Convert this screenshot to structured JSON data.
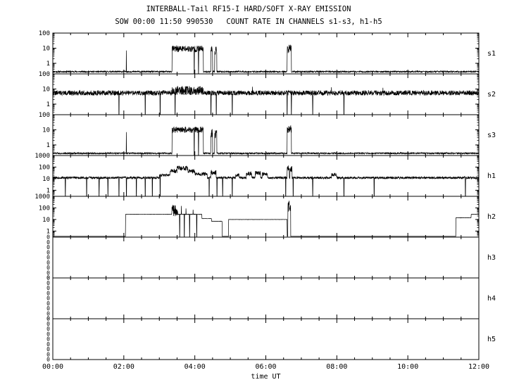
{
  "title": "INTERBALL-Tail RF15-I HARD/SOFT X-RAY EMISSION",
  "subtitle": "SOW 00:00 11:50 990530   COUNT RATE IN CHANNELS s1-s3, h1-h5",
  "chart_data": {
    "type": "line",
    "title": "INTERBALL-Tail RF15-I HARD/SOFT X-RAY EMISSION",
    "subtitle": "SOW 00:00 11:50 990530   COUNT RATE IN CHANNELS s1-s3, h1-h5",
    "xlabel": "time UT",
    "x_range_hours": [
      0,
      12
    ],
    "x_tick_hours": [
      0,
      2,
      4,
      6,
      8,
      10,
      12
    ],
    "x_tick_labels": [
      "00:00",
      "02:00",
      "04:00",
      "06:00",
      "08:00",
      "10:00",
      "12:00"
    ],
    "y_scale": "log",
    "grid": false,
    "legend": "none",
    "panels": [
      {
        "label": "s1",
        "ylim": [
          0.2,
          100
        ],
        "y_ticks": [
          {
            "v": 100,
            "label": "100"
          },
          {
            "v": 10,
            "label": "10"
          },
          {
            "v": 1,
            "label": "1"
          }
        ],
        "seed": 11,
        "baseline": 0.28,
        "noise": 0.05,
        "bursts": [
          {
            "t0": 3.36,
            "t1": 4.24,
            "level": 9,
            "noise": 0.22
          },
          {
            "t0": 4.45,
            "t1": 4.5,
            "level": 8,
            "noise": 0.3
          },
          {
            "t0": 4.56,
            "t1": 4.62,
            "level": 7,
            "noise": 0.3
          },
          {
            "t0": 6.6,
            "t1": 6.72,
            "level": 9,
            "noise": 0.28
          }
        ],
        "spikes": [
          {
            "t": 2.07,
            "level": 7
          }
        ],
        "dropouts": [
          3.98,
          4.1
        ]
      },
      {
        "label": "s2",
        "ylim": [
          0.2,
          100
        ],
        "y_ticks": [
          {
            "v": 100,
            "label": "100"
          },
          {
            "v": 10,
            "label": "10"
          },
          {
            "v": 1,
            "label": "1"
          }
        ],
        "seed": 22,
        "baseline": 5.5,
        "noise": 0.16,
        "bursts": [
          {
            "t0": 3.36,
            "t1": 4.24,
            "level": 8,
            "noise": 0.3
          }
        ],
        "spikes": [
          {
            "t": 5.62,
            "level": 14
          },
          {
            "t": 7.85,
            "level": 13
          },
          {
            "t": 9.3,
            "level": 12
          }
        ],
        "dropouts": [
          1.86,
          2.6,
          3.02,
          3.44,
          4.45,
          4.6,
          5.05,
          6.6,
          6.72,
          7.32,
          8.2
        ]
      },
      {
        "label": "s3",
        "ylim": [
          0.2,
          100
        ],
        "y_ticks": [
          {
            "v": 100,
            "label": "100"
          },
          {
            "v": 10,
            "label": "10"
          },
          {
            "v": 1,
            "label": "1"
          }
        ],
        "seed": 33,
        "baseline": 0.28,
        "noise": 0.05,
        "bursts": [
          {
            "t0": 3.36,
            "t1": 4.24,
            "level": 10,
            "noise": 0.2
          },
          {
            "t0": 4.45,
            "t1": 4.5,
            "level": 6,
            "noise": 0.3
          },
          {
            "t0": 4.56,
            "t1": 4.62,
            "level": 5,
            "noise": 0.3
          },
          {
            "t0": 6.6,
            "t1": 6.72,
            "level": 11,
            "noise": 0.25
          }
        ],
        "spikes": [
          {
            "t": 2.07,
            "level": 7
          }
        ],
        "dropouts": [
          3.98,
          4.1
        ]
      },
      {
        "label": "h1",
        "ylim": [
          0.3,
          1000
        ],
        "y_ticks": [
          {
            "v": 1000,
            "label": "1000"
          },
          {
            "v": 100,
            "label": "100"
          },
          {
            "v": 10,
            "label": "10"
          },
          {
            "v": 1,
            "label": "1"
          }
        ],
        "seed": 44,
        "baseline": 12,
        "noise": 0.1,
        "bursts": [
          {
            "t0": 3.0,
            "t1": 3.3,
            "level": 20,
            "noise": 0.12
          },
          {
            "t0": 3.3,
            "t1": 3.5,
            "level": 45,
            "noise": 0.18
          },
          {
            "t0": 3.5,
            "t1": 3.8,
            "level": 80,
            "noise": 0.2
          },
          {
            "t0": 3.8,
            "t1": 4.0,
            "level": 45,
            "noise": 0.18
          },
          {
            "t0": 4.0,
            "t1": 4.35,
            "level": 25,
            "noise": 0.15
          },
          {
            "t0": 4.45,
            "t1": 4.6,
            "level": 35,
            "noise": 0.2
          },
          {
            "t0": 5.15,
            "t1": 5.25,
            "level": 20,
            "noise": 0.15
          },
          {
            "t0": 5.45,
            "t1": 5.6,
            "level": 28,
            "noise": 0.18
          },
          {
            "t0": 5.7,
            "t1": 5.85,
            "level": 30,
            "noise": 0.18
          },
          {
            "t0": 5.9,
            "t1": 6.05,
            "level": 25,
            "noise": 0.15
          },
          {
            "t0": 6.6,
            "t1": 6.66,
            "level": 90,
            "noise": 0.25
          },
          {
            "t0": 6.68,
            "t1": 6.74,
            "level": 70,
            "noise": 0.25
          },
          {
            "t0": 7.85,
            "t1": 8.0,
            "level": 22,
            "noise": 0.15
          }
        ],
        "spikes": [],
        "dropouts": [
          0.35,
          0.95,
          1.3,
          1.55,
          1.86,
          2.07,
          2.35,
          2.6,
          2.8,
          3.02,
          4.4,
          4.62,
          4.78,
          5.05,
          6.56,
          6.77,
          7.32,
          8.2,
          9.05,
          11.62
        ]
      },
      {
        "label": "h2",
        "ylim": [
          0.3,
          1000
        ],
        "y_ticks": [
          {
            "v": 1000,
            "label": "1000"
          },
          {
            "v": 100,
            "label": "100"
          },
          {
            "v": 10,
            "label": "10"
          },
          {
            "v": 1,
            "label": "1"
          }
        ],
        "seed": 55,
        "baseline": 0.35,
        "noise": 0,
        "bursts": [
          {
            "t0": 2.05,
            "t1": 3.35,
            "level": 28,
            "noise": 0.01
          },
          {
            "t0": 3.35,
            "t1": 3.52,
            "level": 60,
            "noise": 0.5
          },
          {
            "t0": 3.52,
            "t1": 4.2,
            "level": 28,
            "noise": 0.02
          },
          {
            "t0": 4.2,
            "t1": 4.47,
            "level": 12,
            "noise": 0.01
          },
          {
            "t0": 4.47,
            "t1": 4.77,
            "level": 7,
            "noise": 0.01
          },
          {
            "t0": 4.95,
            "t1": 6.6,
            "level": 10,
            "noise": 0.01
          },
          {
            "t0": 6.62,
            "t1": 6.7,
            "level": 120,
            "noise": 0.55
          },
          {
            "t0": 11.35,
            "t1": 11.78,
            "level": 14,
            "noise": 0.01
          },
          {
            "t0": 11.78,
            "t1": 12.0,
            "level": 28,
            "noise": 0.01
          }
        ],
        "spikes": [
          {
            "t": 3.62,
            "level": 150
          },
          {
            "t": 3.75,
            "level": 90
          },
          {
            "t": 3.95,
            "level": 70
          }
        ],
        "dropouts": [
          3.57,
          3.7,
          3.85,
          4.05
        ]
      },
      {
        "label": "h3",
        "ylim": null,
        "y_zero_labels": [
          "0",
          "0",
          "0",
          "0",
          "0",
          "0",
          "0",
          "0",
          "0"
        ],
        "baseline": null
      },
      {
        "label": "h4",
        "ylim": null,
        "y_zero_labels": [
          "0",
          "0",
          "0",
          "0",
          "0",
          "0",
          "0",
          "0",
          "0"
        ],
        "baseline": null
      },
      {
        "label": "h5",
        "ylim": null,
        "y_zero_labels": [
          "0",
          "0",
          "0",
          "0",
          "0",
          "0",
          "0",
          "0",
          "0"
        ],
        "baseline": null
      }
    ]
  }
}
